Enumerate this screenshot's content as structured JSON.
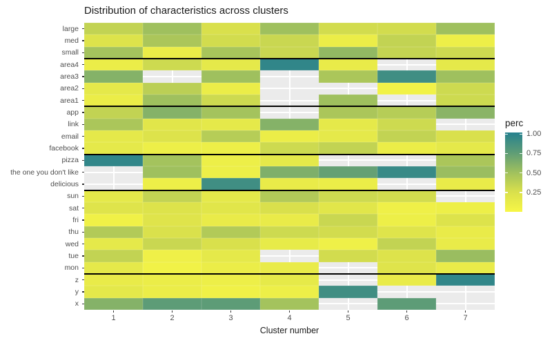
{
  "title": "Distribution of characteristics across clusters",
  "x_axis": {
    "label": "Cluster number",
    "ticks": [
      "1",
      "2",
      "3",
      "4",
      "5",
      "6",
      "7"
    ]
  },
  "legend": {
    "title": "perc",
    "ticks": [
      "1.00",
      "0.75",
      "0.50",
      "0.25"
    ],
    "tick_values": [
      1.0,
      0.75,
      0.5,
      0.25
    ]
  },
  "colors": {
    "panel_bg": "#EBEBEB",
    "gridline": "#FFFFFF",
    "separator": "#000000",
    "title_text": "#1a1a1a",
    "tick_text": "#4d4d4d",
    "scale_stops": [
      [
        0,
        "#f7f646"
      ],
      [
        0.25,
        "#d9e04c"
      ],
      [
        0.5,
        "#9fc05e"
      ],
      [
        0.75,
        "#5d9c77"
      ],
      [
        1,
        "#26818e"
      ]
    ]
  },
  "chart_data": {
    "type": "heatmap",
    "title": "Distribution of characteristics across clusters",
    "xlabel": "Cluster number",
    "ylabel": "",
    "legend_title": "perc",
    "legend_range": [
      0,
      1
    ],
    "columns": [
      "1",
      "2",
      "3",
      "4",
      "5",
      "6",
      "7"
    ],
    "na_note": "null = missing tile (panel background visible)",
    "rows": [
      {
        "label": "large",
        "values": [
          0.35,
          0.5,
          0.25,
          0.5,
          0.28,
          0.28,
          0.5
        ]
      },
      {
        "label": "med",
        "values": [
          0.22,
          0.45,
          0.28,
          0.32,
          0.1,
          0.35,
          0.08
        ]
      },
      {
        "label": "small",
        "values": [
          0.48,
          0.1,
          0.46,
          0.32,
          0.55,
          0.34,
          0.3
        ]
      },
      {
        "label": "area4",
        "values": [
          0.1,
          0.3,
          0.15,
          0.95,
          0.12,
          null,
          0.15
        ]
      },
      {
        "label": "area3",
        "values": [
          0.6,
          null,
          0.5,
          null,
          0.45,
          0.88,
          0.5
        ]
      },
      {
        "label": "area2",
        "values": [
          0.15,
          0.38,
          0.1,
          null,
          null,
          0.05,
          0.3
        ]
      },
      {
        "label": "area1",
        "values": [
          0.1,
          0.5,
          0.3,
          null,
          0.5,
          null,
          0.3
        ]
      },
      {
        "label": "app",
        "values": [
          0.35,
          0.6,
          0.48,
          null,
          0.45,
          0.4,
          0.58
        ]
      },
      {
        "label": "link",
        "values": [
          0.45,
          0.18,
          0.15,
          0.6,
          0.15,
          0.3,
          null
        ]
      },
      {
        "label": "email",
        "values": [
          0.15,
          0.22,
          0.4,
          0.1,
          0.15,
          0.35,
          0.25
        ]
      },
      {
        "label": "facebook",
        "values": [
          0.15,
          0.08,
          0.08,
          0.3,
          0.35,
          0.1,
          0.15
        ]
      },
      {
        "label": "pizza",
        "values": [
          0.95,
          0.48,
          0.08,
          0.15,
          null,
          null,
          0.45
        ]
      },
      {
        "label": "the one you don't like",
        "values": [
          null,
          0.5,
          0.08,
          0.62,
          0.72,
          0.92,
          0.52
        ]
      },
      {
        "label": "delicious",
        "values": [
          null,
          0.08,
          0.88,
          0.12,
          0.1,
          null,
          0.12
        ]
      },
      {
        "label": "sun",
        "values": [
          0.15,
          0.35,
          0.15,
          0.42,
          0.3,
          0.28,
          null
        ]
      },
      {
        "label": "sat",
        "values": [
          0.2,
          0.22,
          0.18,
          0.25,
          0.18,
          0.07,
          0.08
        ]
      },
      {
        "label": "fri",
        "values": [
          0.06,
          0.2,
          0.12,
          0.12,
          0.32,
          0.08,
          0.22
        ]
      },
      {
        "label": "thu",
        "values": [
          0.42,
          0.24,
          0.42,
          0.3,
          0.28,
          0.2,
          0.12
        ]
      },
      {
        "label": "wed",
        "values": [
          0.15,
          0.32,
          0.25,
          0.13,
          0.07,
          0.35,
          0.12
        ]
      },
      {
        "label": "tue",
        "values": [
          0.35,
          0.07,
          0.15,
          null,
          0.28,
          0.22,
          0.52
        ]
      },
      {
        "label": "mon",
        "values": [
          0.15,
          0.05,
          0.1,
          0.12,
          null,
          0.2,
          0.12
        ]
      },
      {
        "label": "z",
        "values": [
          0.12,
          0.1,
          0.08,
          0.14,
          null,
          0.12,
          0.95
        ]
      },
      {
        "label": "y",
        "values": [
          0.16,
          0.1,
          0.06,
          0.08,
          0.88,
          null,
          null
        ]
      },
      {
        "label": "x",
        "values": [
          0.6,
          0.75,
          0.75,
          0.48,
          null,
          0.75,
          null
        ]
      }
    ],
    "group_separators_after": [
      "small",
      "area1",
      "facebook",
      "delicious",
      "mon"
    ],
    "layout": {
      "grid": "on",
      "legend_position": "right"
    }
  }
}
